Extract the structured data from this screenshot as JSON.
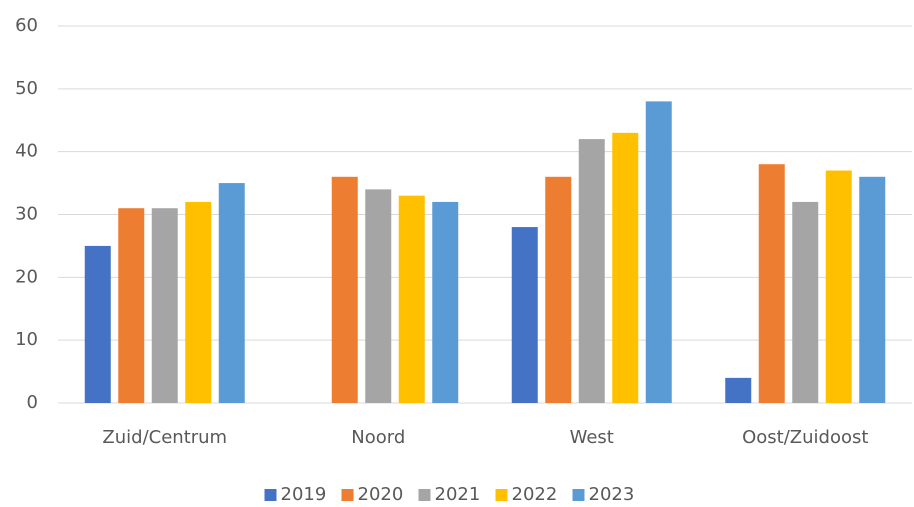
{
  "chart_data": {
    "type": "bar",
    "categories": [
      "Zuid/Centrum",
      "Noord",
      "West",
      "Oost/Zuidoost"
    ],
    "series": [
      {
        "name": "2019",
        "color": "#4472c4",
        "values": [
          25,
          null,
          28,
          4
        ]
      },
      {
        "name": "2020",
        "color": "#ed7d31",
        "values": [
          31,
          36,
          36,
          38
        ]
      },
      {
        "name": "2021",
        "color": "#a5a5a5",
        "values": [
          31,
          34,
          42,
          32
        ]
      },
      {
        "name": "2022",
        "color": "#ffc000",
        "values": [
          32,
          33,
          43,
          37
        ]
      },
      {
        "name": "2023",
        "color": "#5b9bd5",
        "values": [
          35,
          32,
          48,
          36
        ]
      }
    ],
    "ylim": [
      0,
      60
    ],
    "yticks": [
      0,
      10,
      20,
      30,
      40,
      50,
      60
    ],
    "grid": true,
    "legend": "bottom"
  }
}
